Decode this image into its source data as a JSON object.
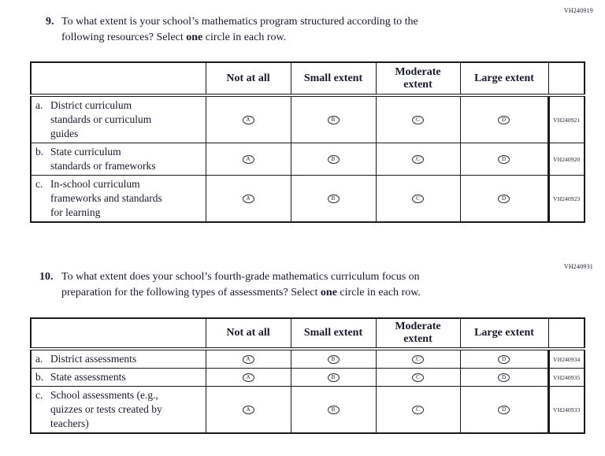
{
  "page": {
    "background": "#ffffff",
    "text_color": "#191930",
    "border_color": "#1a1a1a"
  },
  "questions": [
    {
      "code": "VH240919",
      "number": "9.",
      "line1": "To what extent is your school’s mathematics program structured according to the",
      "line2_pre": "following resources? Select ",
      "line2_bold": "one",
      "line2_post": " circle in each row.",
      "table": {
        "col_headers": [
          "Not at all",
          "Small extent",
          "Moderate extent",
          "Large extent"
        ],
        "rows": [
          {
            "letter": "a.",
            "label_lines": [
              "District curriculum",
              "standards or curriculum",
              "guides"
            ],
            "options": [
              "A",
              "B",
              "C",
              "D"
            ],
            "code": "VH240921"
          },
          {
            "letter": "b.",
            "label_lines": [
              "State curriculum",
              "standards or frameworks"
            ],
            "options": [
              "A",
              "B",
              "C",
              "D"
            ],
            "code": "VH240920"
          },
          {
            "letter": "c.",
            "label_lines": [
              "In-school curriculum",
              "frameworks and standards",
              "for learning"
            ],
            "options": [
              "A",
              "B",
              "C",
              "D"
            ],
            "code": "VH240923"
          }
        ]
      }
    },
    {
      "code": "VH240931",
      "number": "10.",
      "line1": "To what extent does your school’s fourth-grade mathematics curriculum focus on",
      "line2_pre": "preparation for the following types of assessments? Select ",
      "line2_bold": "one",
      "line2_post": " circle in each row.",
      "table": {
        "col_headers": [
          "Not at all",
          "Small extent",
          "Moderate extent",
          "Large extent"
        ],
        "rows": [
          {
            "letter": "a.",
            "label_lines": [
              "District assessments"
            ],
            "options": [
              "A",
              "B",
              "C",
              "D"
            ],
            "code": "VH240934"
          },
          {
            "letter": "b.",
            "label_lines": [
              "State assessments"
            ],
            "options": [
              "A",
              "B",
              "C",
              "D"
            ],
            "code": "VH240935"
          },
          {
            "letter": "c.",
            "label_lines": [
              "School assessments (e.g.,",
              "quizzes or tests created by",
              "teachers)"
            ],
            "options": [
              "A",
              "B",
              "C",
              "D"
            ],
            "code": "VH240933"
          }
        ]
      }
    }
  ]
}
